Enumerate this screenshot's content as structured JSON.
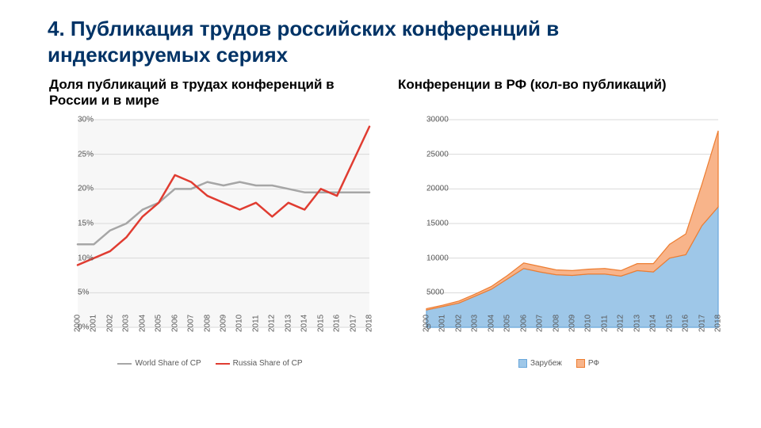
{
  "title": "4. Публикация трудов российских конференций в индексируемых сериях",
  "left": {
    "subtitle": "Доля публикаций в трудах конференций в России и в мире",
    "type": "line",
    "plot_bg": "#f7f7f7",
    "grid_color": "#d9d9d9",
    "ylim": [
      0,
      30
    ],
    "ytick_step": 5,
    "ytick_suffix": "%",
    "years": [
      2000,
      2001,
      2002,
      2003,
      2004,
      2005,
      2006,
      2007,
      2008,
      2009,
      2010,
      2011,
      2012,
      2013,
      2014,
      2015,
      2016,
      2017,
      2018
    ],
    "series": [
      {
        "name": "World Share of CP",
        "color": "#a6a6a6",
        "width": 2.5,
        "values": [
          12,
          12,
          14,
          15,
          17,
          18,
          20,
          20,
          21,
          20.5,
          21,
          20.5,
          20.5,
          20,
          19.5,
          19.5,
          19.5,
          19.5,
          19.5
        ]
      },
      {
        "name": "Russia Share of CP",
        "color": "#e03c31",
        "width": 2.5,
        "values": [
          9,
          10,
          11,
          13,
          16,
          18,
          22,
          21,
          19,
          18,
          17,
          18,
          16,
          18,
          17,
          20,
          19,
          24,
          29
        ]
      }
    ]
  },
  "right": {
    "subtitle": "Конференции в РФ\n(кол-во публикаций)",
    "type": "area",
    "plot_bg": "#ffffff",
    "grid_color": "#d9d9d9",
    "ylim": [
      0,
      30000
    ],
    "ytick_step": 5000,
    "ytick_suffix": "",
    "years": [
      2000,
      2001,
      2002,
      2003,
      2004,
      2005,
      2006,
      2007,
      2008,
      2009,
      2010,
      2011,
      2012,
      2013,
      2014,
      2015,
      2016,
      2017,
      2018
    ],
    "series": [
      {
        "name": "Зарубеж",
        "fill": "#9ec7e8",
        "stroke": "#6aa7db",
        "values": [
          2500,
          3000,
          3500,
          4500,
          5500,
          7000,
          8500,
          8000,
          7600,
          7500,
          7700,
          7700,
          7400,
          8200,
          8000,
          10000,
          10500,
          14700,
          17400
        ]
      },
      {
        "name": "РФ",
        "fill": "#f8b48a",
        "stroke": "#ed7d31",
        "values": [
          200,
          200,
          300,
          300,
          400,
          500,
          800,
          800,
          700,
          700,
          700,
          800,
          800,
          1000,
          1200,
          2000,
          3000,
          6000,
          11000
        ]
      }
    ]
  },
  "tick_font_size": 10,
  "subtitle_font_size": 17,
  "title_font_size": 26,
  "title_color": "#003366"
}
